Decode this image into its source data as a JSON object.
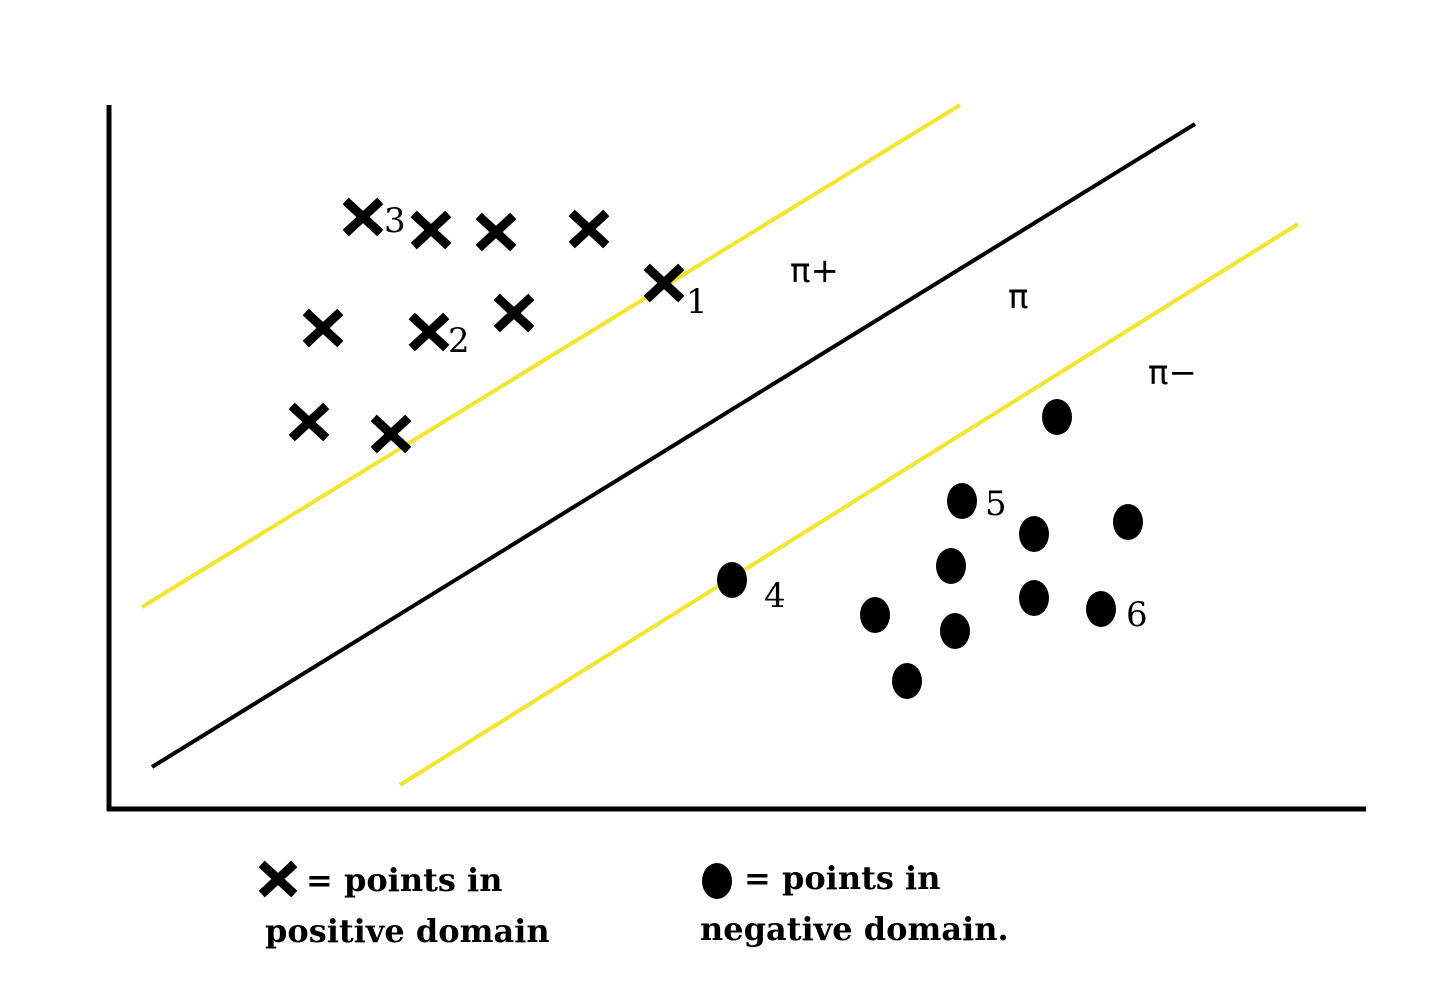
{
  "colors": {
    "background": "#ffffff",
    "ink": "#000000",
    "margin_line": "#f5e52a"
  },
  "planes": {
    "upper": "π+",
    "middle": "π",
    "lower": "π−"
  },
  "positive_points": [
    {
      "label": "3"
    },
    {
      "label": ""
    },
    {
      "label": ""
    },
    {
      "label": ""
    },
    {
      "label": "1"
    },
    {
      "label": ""
    },
    {
      "label": "2"
    },
    {
      "label": ""
    },
    {
      "label": ""
    },
    {
      "label": ""
    }
  ],
  "negative_points": [
    {
      "label": ""
    },
    {
      "label": "5"
    },
    {
      "label": ""
    },
    {
      "label": ""
    },
    {
      "label": "4"
    },
    {
      "label": ""
    },
    {
      "label": ""
    },
    {
      "label": "6"
    },
    {
      "label": ""
    },
    {
      "label": ""
    },
    {
      "label": ""
    }
  ],
  "legend": {
    "positive": {
      "line1": "= points in",
      "line2": "positive domain"
    },
    "negative": {
      "line1": "= points in",
      "line2": "negative domain."
    }
  }
}
